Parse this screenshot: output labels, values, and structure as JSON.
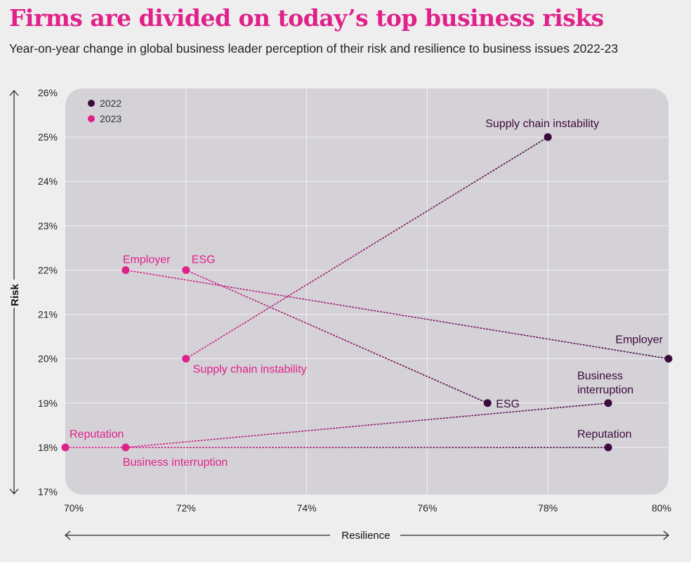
{
  "title": "Firms are divided on today’s top business risks",
  "subtitle": "Year-on-year change in global business leader perception of their risk and resilience to business issues 2022-23",
  "colors": {
    "c2022": "#3d0b3b",
    "c2023": "#e0218a",
    "title": "#e0218a",
    "plotBg": "#d4d1d7",
    "pageBg": "#efeeee"
  },
  "chart_data": {
    "type": "scatter",
    "xlabel": "Resilience",
    "ylabel": "Risk",
    "xlim": [
      70,
      80
    ],
    "ylim": [
      17,
      26
    ],
    "x_ticks": [
      "70%",
      "72%",
      "74%",
      "76%",
      "78%",
      "80%"
    ],
    "y_ticks": [
      "17%",
      "18%",
      "19%",
      "20%",
      "21%",
      "22%",
      "23%",
      "24%",
      "25%",
      "26%"
    ],
    "legend": [
      "2022",
      "2023"
    ],
    "legend_position": "top-left",
    "grid": true,
    "items": [
      {
        "name": "Supply chain instability",
        "p2022": [
          78,
          25
        ],
        "p2023": [
          72,
          20
        ]
      },
      {
        "name": "Employer",
        "p2022": [
          80,
          20
        ],
        "p2023": [
          71,
          22
        ]
      },
      {
        "name": "ESG",
        "p2022": [
          77,
          19
        ],
        "p2023": [
          72,
          22
        ]
      },
      {
        "name": "Business interruption",
        "p2022": [
          79,
          19
        ],
        "p2023": [
          71,
          18
        ]
      },
      {
        "name": "Reputation",
        "p2022": [
          79,
          18
        ],
        "p2023": [
          70,
          18
        ]
      }
    ]
  }
}
